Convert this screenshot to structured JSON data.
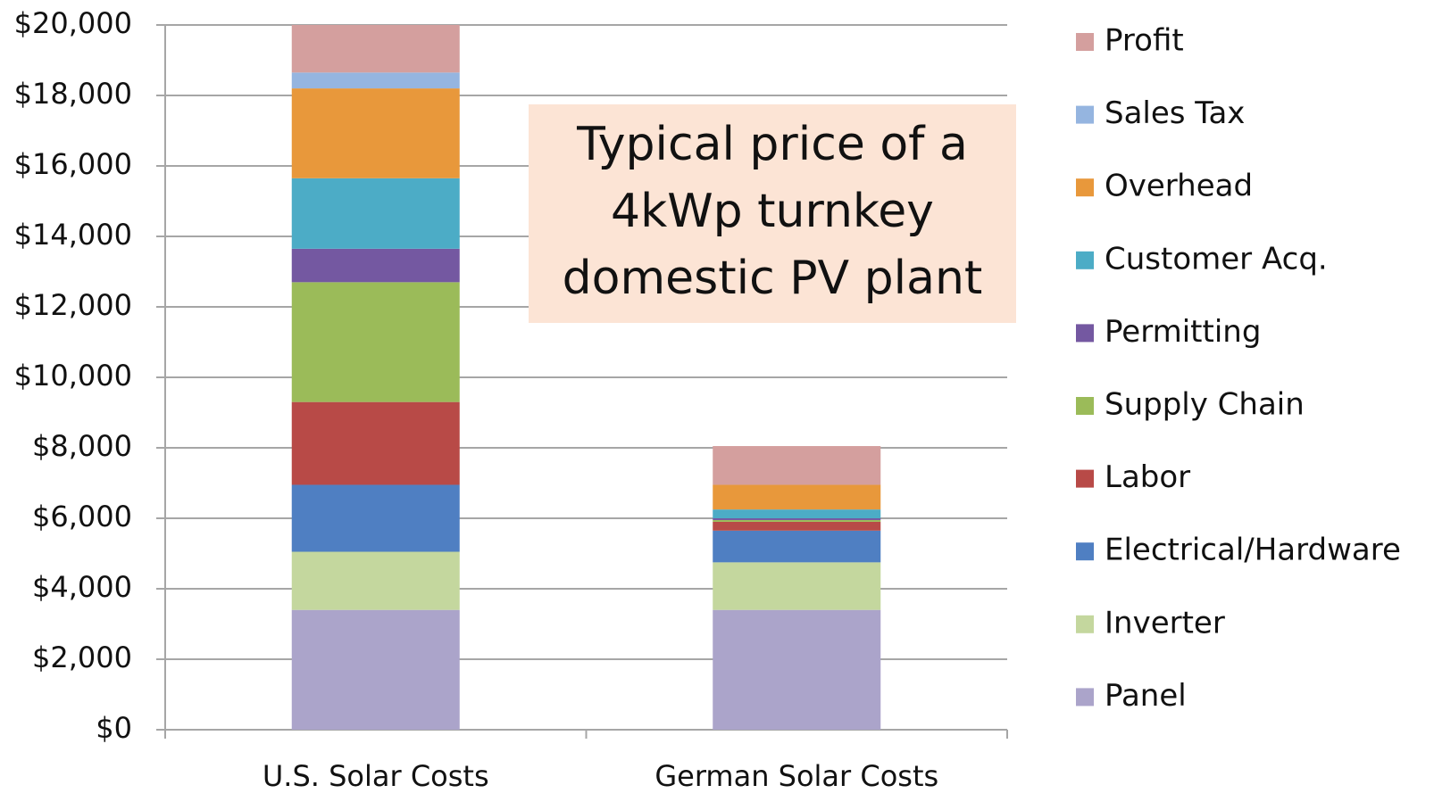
{
  "chart_data": {
    "type": "stacked_bar",
    "categories": [
      "U.S. Solar Costs",
      "German Solar Costs"
    ],
    "series": [
      {
        "name": "Panel",
        "color": "#aba4ca",
        "values": [
          3400,
          3400
        ]
      },
      {
        "name": "Inverter",
        "color": "#c4d79e",
        "values": [
          1650,
          1350
        ]
      },
      {
        "name": "Electrical/Hardware",
        "color": "#4f7fc2",
        "values": [
          1900,
          900
        ]
      },
      {
        "name": "Labor",
        "color": "#b84a47",
        "values": [
          2350,
          250
        ]
      },
      {
        "name": "Supply Chain",
        "color": "#9bbb59",
        "values": [
          3400,
          50
        ]
      },
      {
        "name": "Permitting",
        "color": "#7458a1",
        "values": [
          950,
          50
        ]
      },
      {
        "name": "Customer Acq.",
        "color": "#4cacc6",
        "values": [
          2000,
          250
        ]
      },
      {
        "name": "Overhead",
        "color": "#e8983b",
        "values": [
          2550,
          700
        ]
      },
      {
        "name": "Sales Tax",
        "color": "#95b5e0",
        "values": [
          450,
          0
        ]
      },
      {
        "name": "Profit",
        "color": "#d49f9e",
        "values": [
          1350,
          1100
        ]
      }
    ],
    "ylim": [
      0,
      20000
    ],
    "yticks": [
      {
        "value": 0,
        "label": "$0"
      },
      {
        "value": 2000,
        "label": "$2,000"
      },
      {
        "value": 4000,
        "label": "$4,000"
      },
      {
        "value": 6000,
        "label": "$6,000"
      },
      {
        "value": 8000,
        "label": "$8,000"
      },
      {
        "value": 10000,
        "label": "$10,000"
      },
      {
        "value": 12000,
        "label": "$12,000"
      },
      {
        "value": 14000,
        "label": "$14,000"
      },
      {
        "value": 16000,
        "label": "$16,000"
      },
      {
        "value": 18000,
        "label": "$18,000"
      },
      {
        "value": 20000,
        "label": "$20,000"
      }
    ],
    "grid": true,
    "legend": "right",
    "annotation": [
      "Typical price of a",
      "4kWp turnkey",
      "domestic PV plant"
    ]
  }
}
